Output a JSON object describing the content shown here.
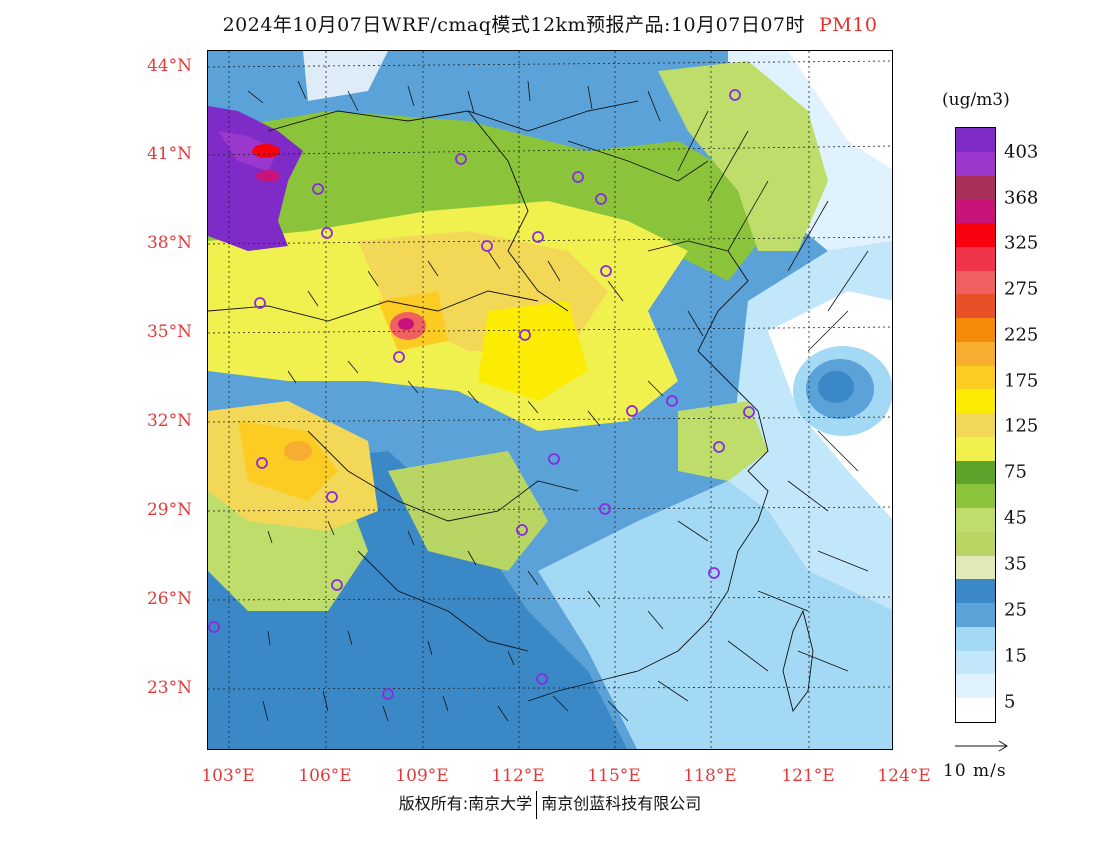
{
  "title": {
    "main": "2024年10月07日WRF/cmaq模式12km预报产品:10月07日07时",
    "variable": "PM10"
  },
  "axes": {
    "lat_labels": [
      "44°N",
      "41°N",
      "38°N",
      "35°N",
      "32°N",
      "29°N",
      "26°N",
      "23°N"
    ],
    "lon_labels": [
      "103°E",
      "106°E",
      "109°E",
      "112°E",
      "115°E",
      "118°E",
      "121°E",
      "124°E"
    ]
  },
  "colorbar": {
    "unit": "(ug/m3)",
    "labels": [
      "403",
      "368",
      "325",
      "275",
      "225",
      "175",
      "125",
      "75",
      "45",
      "35",
      "25",
      "15",
      "5"
    ],
    "colors": [
      "#7e2bc8",
      "#9b37cc",
      "#a8305a",
      "#c8137a",
      "#f8000e",
      "#f0344a",
      "#f06060",
      "#e8502a",
      "#f48a0a",
      "#f7ad30",
      "#fccc23",
      "#fcec04",
      "#f3d858",
      "#f0f04e",
      "#5da22a",
      "#8bc43b",
      "#bedd6b",
      "#b9d665",
      "#dfeab8",
      "#3a88c6",
      "#5aa2d8",
      "#a3d9f5",
      "#c2e7fb",
      "#dff2fd",
      "#ffffff"
    ]
  },
  "reference_vector": {
    "label": "10 m/s"
  },
  "footer": {
    "copyright": "版权所有:南京大学",
    "company": "南京创蓝科技有限公司"
  }
}
